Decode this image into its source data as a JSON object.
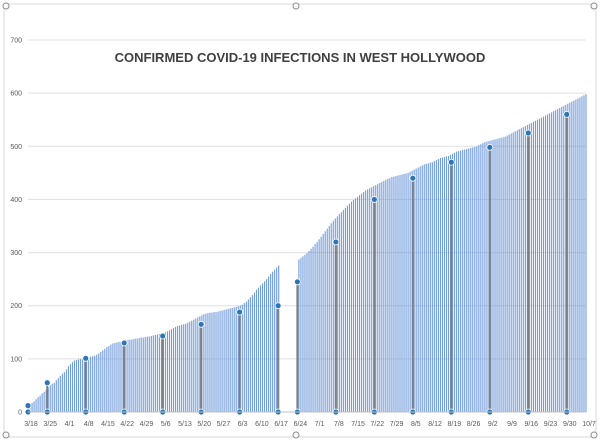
{
  "chart_data": {
    "type": "bar",
    "title": "CONFIRMED COVID-19 INFECTIONS IN WEST HOLLYWOOD",
    "xlabel": "",
    "ylabel": "",
    "ylim": [
      0,
      700
    ],
    "yticks": [
      0,
      100,
      200,
      300,
      400,
      500,
      600,
      700
    ],
    "grid": "horizontal",
    "legend": "none",
    "x_range": [
      "3/18",
      "10/7"
    ],
    "x_tick_labels": [
      "3/18",
      "3/25",
      "4/1",
      "4/8",
      "4/15",
      "4/22",
      "4/29",
      "5/6",
      "5/13",
      "5/20",
      "5/27",
      "6/3",
      "6/10",
      "6/17",
      "6/24",
      "7/1",
      "7/8",
      "7/15",
      "7/22",
      "7/29",
      "8/5",
      "8/12",
      "8/19",
      "8/26",
      "9/2",
      "9/9",
      "9/16",
      "9/23",
      "9/30",
      "10/7"
    ],
    "colors": {
      "bar": "#5b8bd5",
      "weekly_marker": "#2e75b6",
      "weekly_line": "#7f7f7f"
    },
    "series": [
      {
        "values": [
          12,
          14,
          17,
          20,
          24,
          28,
          31,
          35,
          38,
          42,
          46,
          50,
          53,
          55,
          60,
          64,
          68,
          72,
          75,
          80,
          86,
          90,
          94,
          97,
          98,
          99,
          100,
          100,
          101,
          102,
          103,
          104,
          105,
          106,
          108,
          110,
          113,
          116,
          119,
          122,
          124,
          127,
          129,
          130,
          131,
          132,
          132,
          133,
          134,
          135,
          136,
          136,
          137,
          138,
          138,
          139,
          140,
          140,
          141,
          142,
          142,
          143,
          144,
          145,
          146,
          147,
          148,
          149,
          150,
          152,
          154,
          156,
          158,
          160,
          162,
          163,
          164,
          165,
          166,
          168,
          170,
          172,
          174,
          176,
          178,
          180,
          182,
          184,
          185,
          186,
          187,
          187,
          188,
          188,
          189,
          190,
          191,
          192,
          193,
          194,
          195,
          196,
          197,
          198,
          199,
          200,
          202,
          205,
          208,
          212,
          216,
          220,
          225,
          230,
          234,
          238,
          242,
          246,
          250,
          255,
          260,
          264,
          268,
          272,
          276,
          null,
          null,
          null,
          null,
          null,
          null,
          null,
          null,
          null,
          287,
          290,
          293,
          296,
          299,
          303,
          307,
          311,
          316,
          320,
          325,
          330,
          335,
          340,
          345,
          350,
          355,
          360,
          364,
          368,
          372,
          376,
          380,
          384,
          388,
          392,
          396,
          399,
          402,
          405,
          408,
          411,
          414,
          417,
          419,
          421,
          423,
          425,
          427,
          429,
          431,
          433,
          435,
          437,
          439,
          440,
          442,
          443,
          444,
          445,
          446,
          447,
          448,
          449,
          450,
          452,
          454,
          456,
          458,
          460,
          462,
          464,
          466,
          467,
          468,
          469,
          470,
          472,
          474,
          476,
          478,
          479,
          480,
          481,
          482,
          484,
          486,
          488,
          490,
          491,
          492,
          493,
          494,
          495,
          496,
          497,
          498,
          499,
          500,
          502,
          504,
          506,
          508,
          509,
          510,
          511,
          512,
          513,
          514,
          515,
          516,
          517,
          518,
          520,
          522,
          524,
          526,
          528,
          530,
          532,
          534,
          536,
          538,
          540,
          542,
          544,
          546,
          548,
          550,
          552,
          554,
          556,
          558,
          560,
          562,
          564,
          566,
          568,
          570,
          572,
          574,
          576,
          578,
          580,
          582,
          584,
          586,
          588,
          590,
          592,
          594,
          596,
          598
        ]
      }
    ],
    "weekly_points": {
      "x": [
        "3/18",
        "3/25",
        "4/8",
        "4/22",
        "5/6",
        "5/20",
        "6/3",
        "6/17",
        "6/24",
        "7/8",
        "7/22",
        "8/5",
        "8/19",
        "9/2",
        "9/16",
        "9/30"
      ],
      "values": [
        12,
        55,
        101,
        130,
        143,
        165,
        188,
        200,
        245,
        320,
        400,
        440,
        470,
        498,
        525,
        560
      ]
    }
  }
}
